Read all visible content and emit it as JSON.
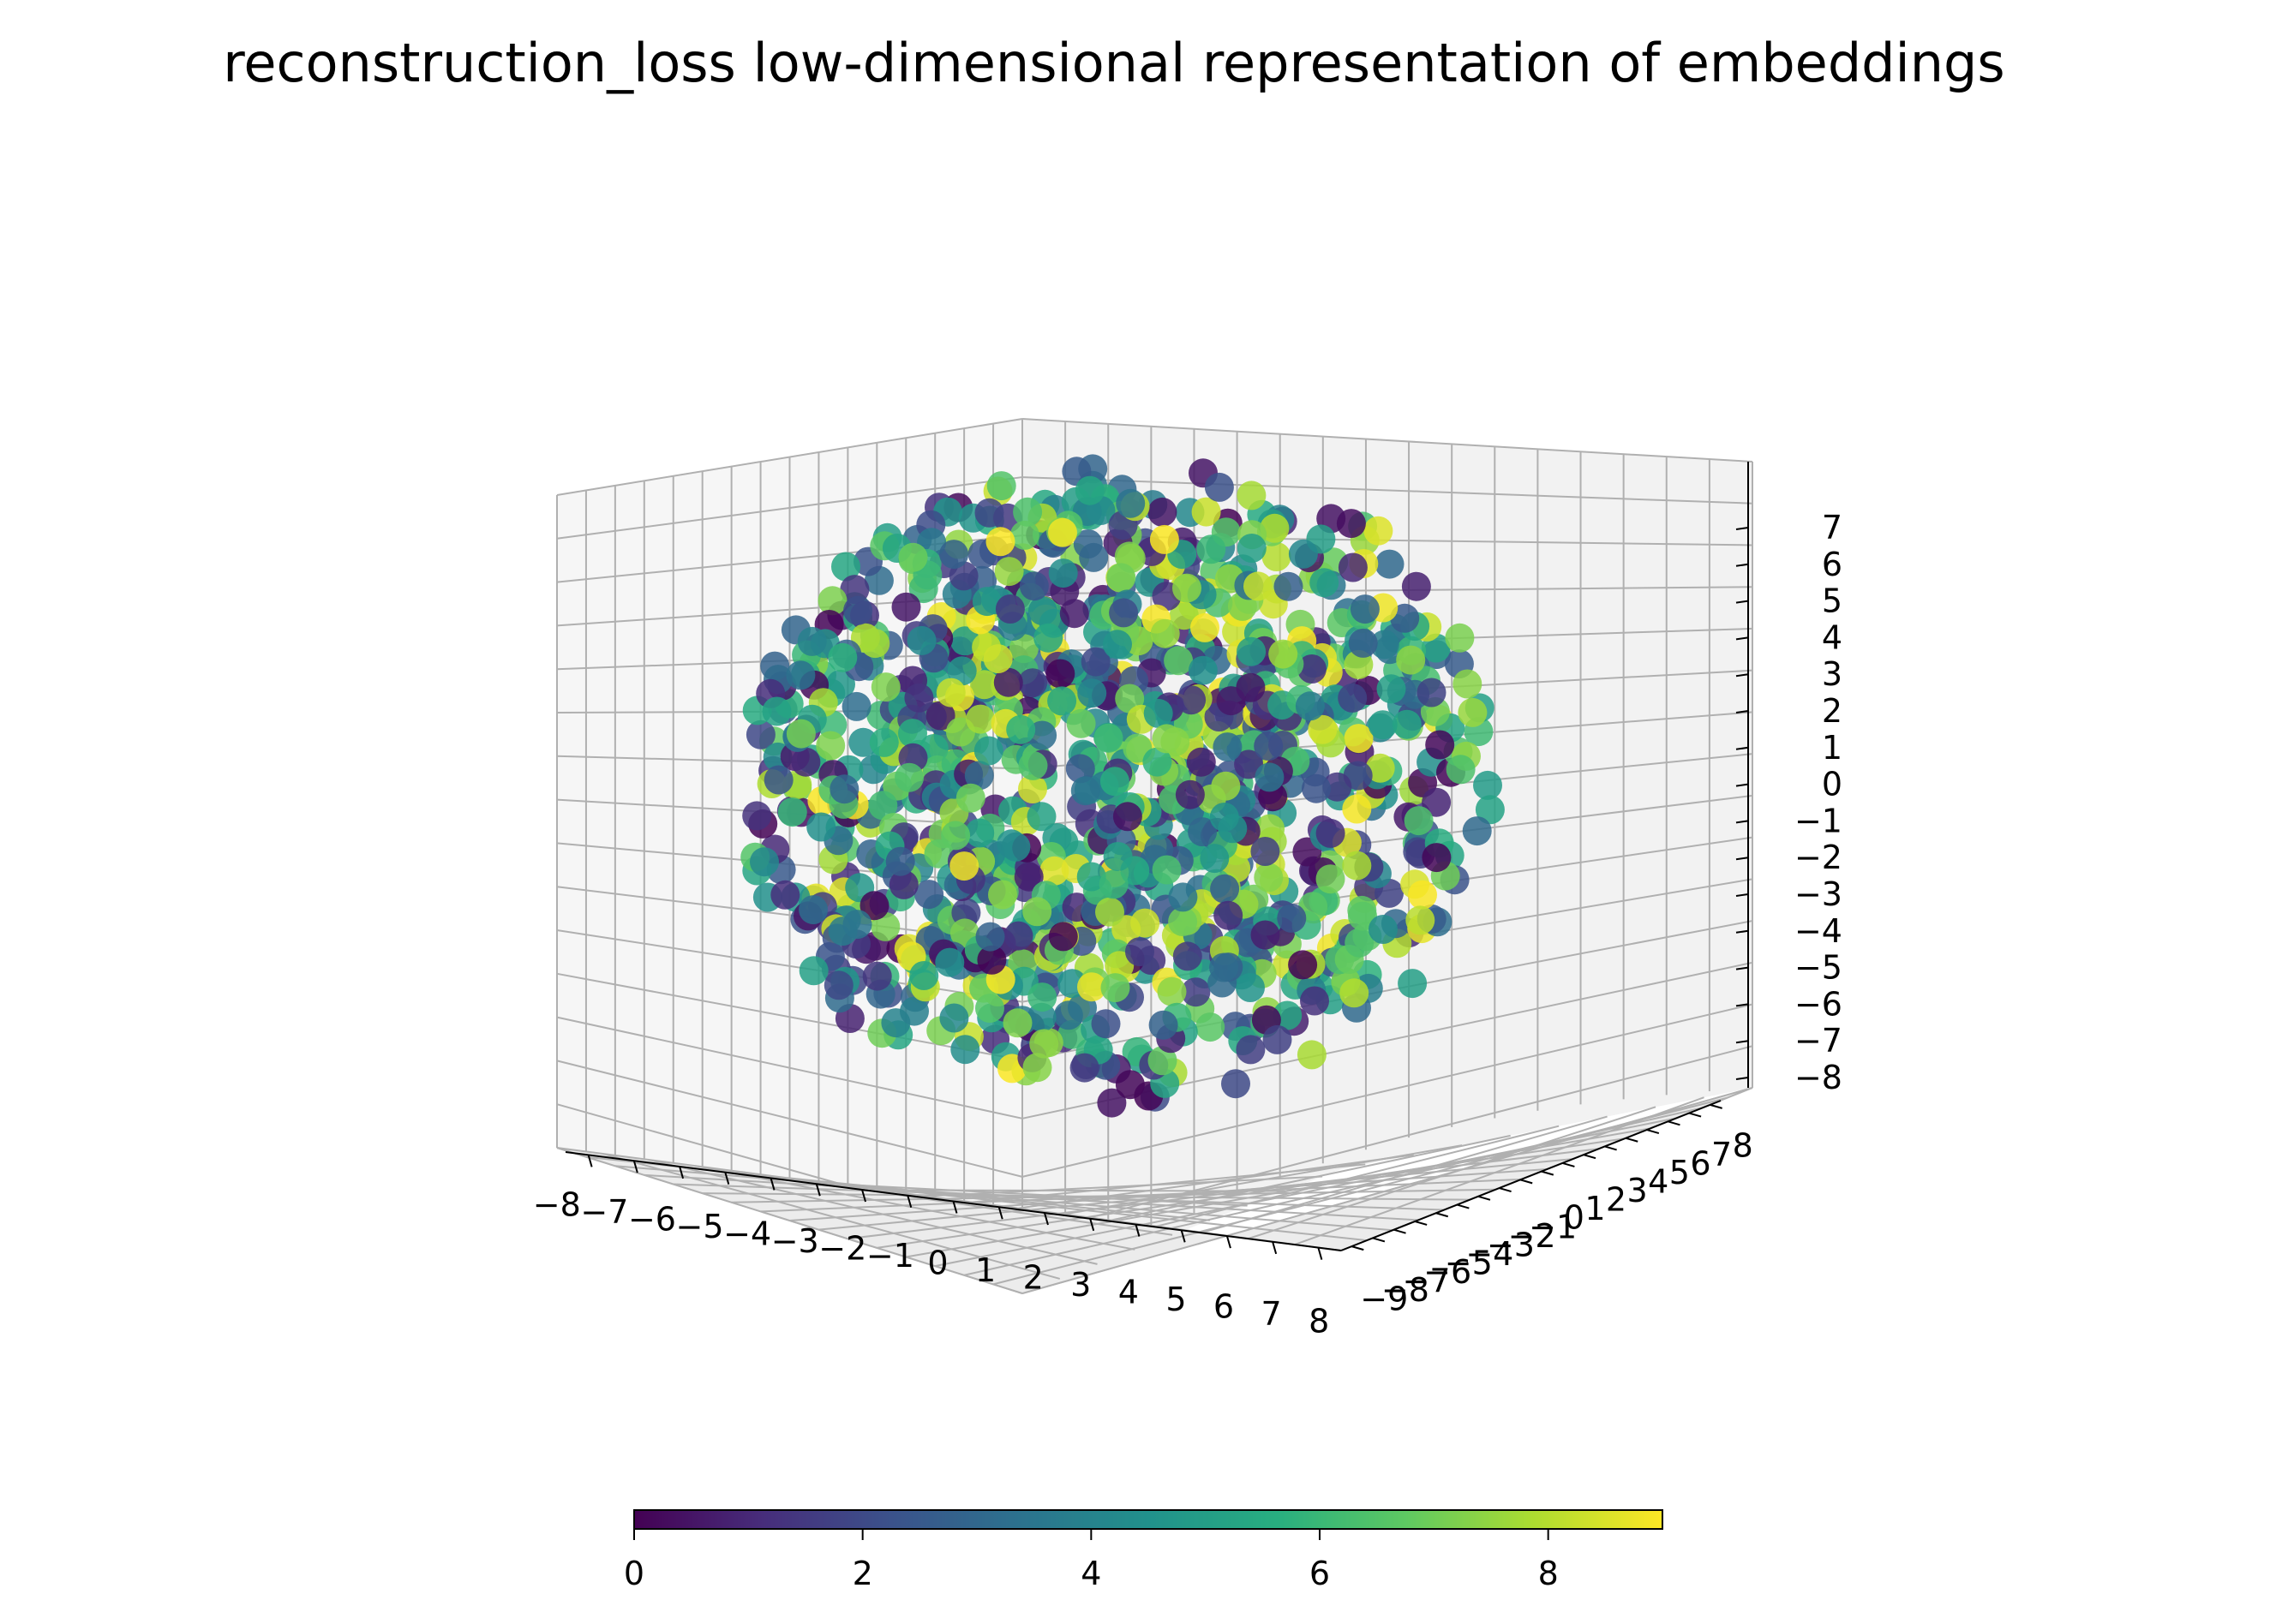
{
  "chart_data": {
    "type": "scatter",
    "projection": "3d",
    "title": "reconstruction_loss low-dimensional representation of embeddings",
    "xlabel": "",
    "ylabel": "",
    "zlabel": "",
    "xlim": [
      -8.5,
      8.5
    ],
    "ylim": [
      -9.5,
      8.5
    ],
    "zlim": [
      -8.5,
      7.5
    ],
    "x_ticks": [
      "−8",
      "−7",
      "−6",
      "−5",
      "−4",
      "−3",
      "−2",
      "−1",
      "0",
      "1",
      "2",
      "3",
      "4",
      "5",
      "6",
      "7",
      "8"
    ],
    "y_ticks": [
      "−9",
      "−8",
      "−7",
      "−6",
      "−5",
      "−4",
      "−3",
      "−2",
      "−1",
      "0",
      "1",
      "2",
      "3",
      "4",
      "5",
      "6",
      "7",
      "8"
    ],
    "z_ticks": [
      "−8",
      "−7",
      "−6",
      "−5",
      "−4",
      "−3",
      "−2",
      "−1",
      "0",
      "1",
      "2",
      "3",
      "4",
      "5",
      "6",
      "7"
    ],
    "grid": true,
    "colormap": "viridis",
    "colorbar": {
      "orientation": "horizontal",
      "placement": "bottom",
      "range": [
        0,
        9
      ],
      "ticks": [
        "0",
        "2",
        "4",
        "6",
        "8"
      ]
    },
    "cloud": {
      "shape": "sphere",
      "center": [
        0,
        0,
        0
      ],
      "radius": 7.5,
      "point_count": 1200,
      "value_range": [
        0,
        9
      ]
    },
    "colors": {
      "background": "#ffffff",
      "pane": "#f2f2f2",
      "grid": "#b0b0b0",
      "axis": "#000000"
    }
  }
}
